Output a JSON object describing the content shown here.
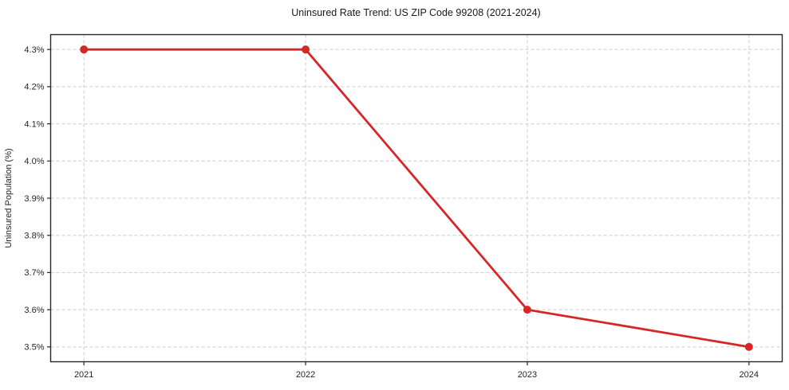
{
  "chart_data": {
    "type": "line",
    "title": "Uninsured Rate Trend: US ZIP Code 99208 (2021-2024)",
    "xlabel": "",
    "ylabel": "Uninsured Population (%)",
    "x": [
      2021,
      2022,
      2023,
      2024
    ],
    "values": [
      4.3,
      4.3,
      3.6,
      3.5
    ],
    "x_tick_labels": [
      "2021",
      "2022",
      "2023",
      "2024"
    ],
    "y_ticks": [
      3.5,
      3.6,
      3.7,
      3.8,
      3.9,
      4.0,
      4.1,
      4.2,
      4.3
    ],
    "y_tick_labels": [
      "3.5%",
      "3.6%",
      "3.7%",
      "3.8%",
      "3.9%",
      "4.0%",
      "4.1%",
      "4.2%",
      "4.3%"
    ],
    "xlim": [
      2020.85,
      2024.15
    ],
    "ylim": [
      3.46,
      4.34
    ],
    "grid": true,
    "grid_style": "dashed",
    "legend": "none",
    "line_color": "#d62728",
    "grid_color": "#cccccc",
    "axis_color": "#262626",
    "marker": "circle"
  }
}
